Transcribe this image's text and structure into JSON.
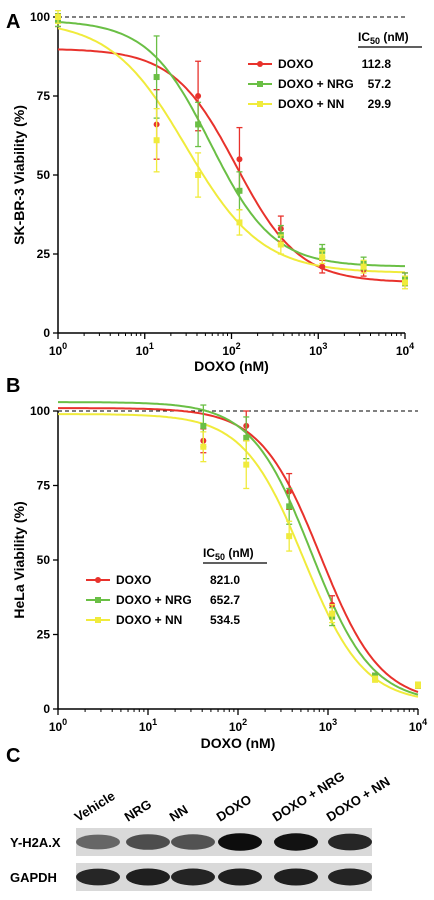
{
  "figure": {
    "panel_letters": [
      "A",
      "B",
      "C"
    ],
    "western_blot": {
      "lanes": [
        "Vehicle",
        "NRG",
        "NN",
        "DOXO",
        "DOXO + NRG",
        "DOXO + NN"
      ],
      "rows": [
        "Y-H2A.X",
        "GAPDH"
      ],
      "band_intensity": {
        "Y-H2A.X": [
          0.6,
          0.7,
          0.68,
          0.95,
          0.93,
          0.85
        ],
        "GAPDH": [
          0.85,
          0.88,
          0.86,
          0.88,
          0.88,
          0.86
        ]
      }
    }
  },
  "chart_data": [
    {
      "type": "line",
      "panel": "A",
      "xlabel": "DOXO (nM)",
      "ylabel": "SK-BR-3 Viability (%)",
      "xscale": "log",
      "xlim": [
        1,
        10000
      ],
      "ylim": [
        0,
        100
      ],
      "x_ticks": [
        1,
        10,
        100,
        1000,
        10000
      ],
      "x_tick_labels": [
        [
          "10",
          "0"
        ],
        [
          "10",
          "1"
        ],
        [
          "10",
          "2"
        ],
        [
          "10",
          "3"
        ],
        [
          "10",
          "4"
        ]
      ],
      "y_ticks": [
        0,
        25,
        50,
        75,
        100
      ],
      "y_tick_labels": [
        "0",
        "25",
        "50",
        "75",
        "100"
      ],
      "reference_line": 100,
      "legend_position": "upper-right",
      "ic50_header": [
        "IC",
        "50",
        " (nM)"
      ],
      "series": [
        {
          "name": "DOXO",
          "color": "#e8322c",
          "ic50": "112.8",
          "fit": {
            "top": 90,
            "bottom": 16,
            "ic50": 112.8,
            "hill": 1.2
          },
          "x": [
            1,
            13.7,
            41.2,
            123.5,
            370.4,
            1111,
            3333,
            10000
          ],
          "y": [
            99,
            66,
            75,
            55,
            33,
            21,
            20,
            17
          ],
          "err": [
            2,
            11,
            11,
            10,
            4,
            2,
            2,
            2
          ]
        },
        {
          "name": "DOXO + NRG",
          "color": "#6abf45",
          "ic50": "57.2",
          "fit": {
            "top": 99,
            "bottom": 21,
            "ic50": 57.2,
            "hill": 1.2
          },
          "x": [
            1,
            13.7,
            41.2,
            123.5,
            370.4,
            1111,
            3333,
            10000
          ],
          "y": [
            99,
            81,
            66,
            45,
            31,
            26,
            22,
            17
          ],
          "err": [
            2,
            13,
            7,
            6,
            3,
            2,
            2,
            2
          ]
        },
        {
          "name": "DOXO + NN",
          "color": "#f0eb3c",
          "ic50": "29.9",
          "fit": {
            "top": 99,
            "bottom": 19,
            "ic50": 29.9,
            "hill": 1.0
          },
          "x": [
            1,
            13.7,
            41.2,
            123.5,
            370.4,
            1111,
            3333,
            10000
          ],
          "y": [
            100,
            61,
            50,
            35,
            28,
            24,
            21,
            16
          ],
          "err": [
            2,
            10,
            7,
            4,
            3,
            2,
            2,
            2
          ]
        }
      ]
    },
    {
      "type": "line",
      "panel": "B",
      "xlabel": "DOXO (nM)",
      "ylabel": "HeLa Viability (%)",
      "xscale": "log",
      "xlim": [
        1,
        10000
      ],
      "ylim": [
        0,
        100
      ],
      "x_ticks": [
        1,
        10,
        100,
        1000,
        10000
      ],
      "x_tick_labels": [
        [
          "10",
          "0"
        ],
        [
          "10",
          "1"
        ],
        [
          "10",
          "2"
        ],
        [
          "10",
          "3"
        ],
        [
          "10",
          "4"
        ]
      ],
      "y_ticks": [
        0,
        25,
        50,
        75,
        100
      ],
      "y_tick_labels": [
        "0",
        "25",
        "50",
        "75",
        "100"
      ],
      "reference_line": 100,
      "legend_position": "middle-left",
      "ic50_header": [
        "IC",
        "50",
        " (nM)"
      ],
      "series": [
        {
          "name": "DOXO",
          "color": "#e8322c",
          "ic50": "821.0",
          "fit": {
            "top": 101,
            "bottom": 2,
            "ic50": 821.0,
            "hill": 1.3
          },
          "x": [
            41.2,
            123.5,
            370.4,
            1111,
            3333,
            10000
          ],
          "y": [
            90,
            95,
            73,
            35,
            11,
            8
          ],
          "err": [
            4,
            5,
            6,
            3,
            1,
            1
          ]
        },
        {
          "name": "DOXO + NRG",
          "color": "#6abf45",
          "ic50": "652.7",
          "fit": {
            "top": 103,
            "bottom": 2,
            "ic50": 652.7,
            "hill": 1.3
          },
          "x": [
            41.2,
            123.5,
            370.4,
            1111,
            3333,
            10000
          ],
          "y": [
            95,
            91,
            68,
            31,
            11,
            8
          ],
          "err": [
            7,
            7,
            6,
            3,
            1,
            1
          ]
        },
        {
          "name": "DOXO + NN",
          "color": "#f0eb3c",
          "ic50": "534.5",
          "fit": {
            "top": 99,
            "bottom": 2,
            "ic50": 534.5,
            "hill": 1.3
          },
          "x": [
            41.2,
            123.5,
            370.4,
            1111,
            3333,
            10000
          ],
          "y": [
            88,
            82,
            58,
            32,
            10,
            8
          ],
          "err": [
            5,
            8,
            5,
            3,
            1,
            1
          ]
        }
      ]
    }
  ]
}
